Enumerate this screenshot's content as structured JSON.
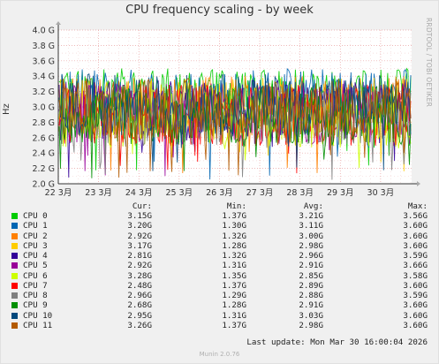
{
  "title": "CPU frequency scaling - by week",
  "side_label": "RRDTOOL / TOBI OETIKER",
  "ylabel": "Hz",
  "footer": "Munin 2.0.76",
  "last_update": "Last update: Mon Mar 30 16:00:04 2026",
  "legend_headers": {
    "cur": "Cur:",
    "min": "Min:",
    "avg": "Avg:",
    "max": "Max:"
  },
  "chart_data": {
    "type": "line",
    "title": "CPU frequency scaling - by week",
    "ylabel": "Hz",
    "ylim": [
      2.0,
      4.0
    ],
    "y_ticks": [
      "2.0 G",
      "2.2 G",
      "2.4 G",
      "2.6 G",
      "2.8 G",
      "3.0 G",
      "3.2 G",
      "3.4 G",
      "3.6 G",
      "3.8 G",
      "4.0 G"
    ],
    "x_ticks": [
      "22 3月",
      "23 3月",
      "24 3月",
      "25 3月",
      "26 3月",
      "27 3月",
      "28 3月",
      "29 3月",
      "30 3月"
    ],
    "grid": true,
    "legend_placement": "bottom",
    "series": [
      {
        "name": "CPU 0",
        "color": "#00cc00",
        "cur": "3.15G",
        "min": "1.37G",
        "avg": "3.21G",
        "max": "3.56G",
        "avg_ghz": 3.21
      },
      {
        "name": "CPU 1",
        "color": "#0066b3",
        "cur": "3.20G",
        "min": "1.30G",
        "avg": "3.11G",
        "max": "3.60G",
        "avg_ghz": 3.11
      },
      {
        "name": "CPU 2",
        "color": "#ff8000",
        "cur": "2.92G",
        "min": "1.32G",
        "avg": "3.00G",
        "max": "3.60G",
        "avg_ghz": 3.0
      },
      {
        "name": "CPU 3",
        "color": "#ffcc00",
        "cur": "3.17G",
        "min": "1.28G",
        "avg": "2.98G",
        "max": "3.60G",
        "avg_ghz": 2.98
      },
      {
        "name": "CPU 4",
        "color": "#330099",
        "cur": "2.81G",
        "min": "1.32G",
        "avg": "2.96G",
        "max": "3.59G",
        "avg_ghz": 2.96
      },
      {
        "name": "CPU 5",
        "color": "#990099",
        "cur": "2.92G",
        "min": "1.31G",
        "avg": "2.91G",
        "max": "3.66G",
        "avg_ghz": 2.91
      },
      {
        "name": "CPU 6",
        "color": "#ccff00",
        "cur": "3.28G",
        "min": "1.35G",
        "avg": "2.85G",
        "max": "3.58G",
        "avg_ghz": 2.85
      },
      {
        "name": "CPU 7",
        "color": "#ff0000",
        "cur": "2.48G",
        "min": "1.37G",
        "avg": "2.89G",
        "max": "3.60G",
        "avg_ghz": 2.89
      },
      {
        "name": "CPU 8",
        "color": "#808080",
        "cur": "2.96G",
        "min": "1.29G",
        "avg": "2.88G",
        "max": "3.59G",
        "avg_ghz": 2.88
      },
      {
        "name": "CPU 9",
        "color": "#008f00",
        "cur": "2.68G",
        "min": "1.28G",
        "avg": "2.91G",
        "max": "3.60G",
        "avg_ghz": 2.91
      },
      {
        "name": "CPU 10",
        "color": "#00487d",
        "cur": "2.95G",
        "min": "1.31G",
        "avg": "3.03G",
        "max": "3.60G",
        "avg_ghz": 3.03
      },
      {
        "name": "CPU 11",
        "color": "#b35a00",
        "cur": "3.26G",
        "min": "1.37G",
        "avg": "2.98G",
        "max": "3.60G",
        "avg_ghz": 2.98
      }
    ]
  }
}
